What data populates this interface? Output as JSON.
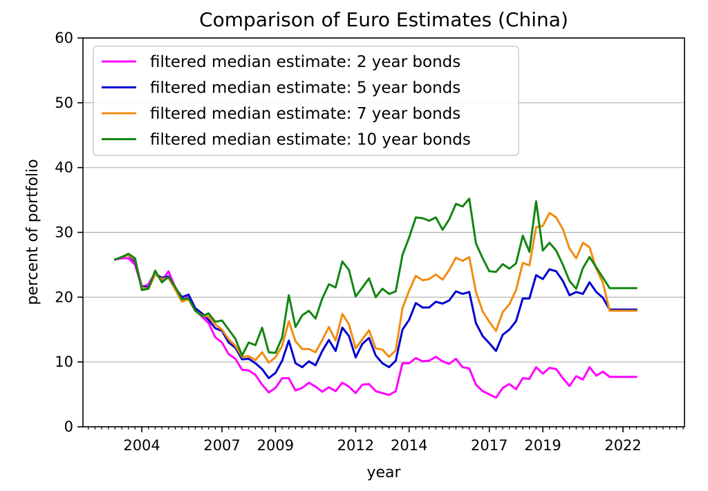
{
  "chart_data": {
    "type": "line",
    "title": "Comparison of Euro Estimates (China)",
    "xlabel": "year",
    "ylabel": "percent of portfolio",
    "xlim": [
      2001.8,
      2024.3
    ],
    "ylim": [
      0,
      60
    ],
    "x_ticks": [
      2004,
      2007,
      2009,
      2012,
      2014,
      2017,
      2019,
      2022
    ],
    "x_tick_labels": [
      "2004",
      "2007",
      "2009",
      "2012",
      "2014",
      "2017",
      "2019",
      "2022"
    ],
    "y_ticks": [
      0,
      10,
      20,
      30,
      40,
      50,
      60
    ],
    "y_tick_labels": [
      "0",
      "10",
      "20",
      "30",
      "40",
      "50",
      "60"
    ],
    "grid": "horizontal",
    "legend_position": "upper-left",
    "x": [
      2003.0,
      2003.25,
      2003.5,
      2003.75,
      2004.0,
      2004.25,
      2004.5,
      2004.75,
      2005.0,
      2005.25,
      2005.5,
      2005.75,
      2006.0,
      2006.25,
      2006.5,
      2006.75,
      2007.0,
      2007.25,
      2007.5,
      2007.75,
      2008.0,
      2008.25,
      2008.5,
      2008.75,
      2009.0,
      2009.25,
      2009.5,
      2009.75,
      2010.0,
      2010.25,
      2010.5,
      2010.75,
      2011.0,
      2011.25,
      2011.5,
      2011.75,
      2012.0,
      2012.25,
      2012.5,
      2012.75,
      2013.0,
      2013.25,
      2013.5,
      2013.75,
      2014.0,
      2014.25,
      2014.5,
      2014.75,
      2015.0,
      2015.25,
      2015.5,
      2015.75,
      2016.0,
      2016.25,
      2016.5,
      2016.75,
      2017.0,
      2017.25,
      2017.5,
      2017.75,
      2018.0,
      2018.25,
      2018.5,
      2018.75,
      2019.0,
      2019.25,
      2019.5,
      2019.75,
      2020.0,
      2020.25,
      2020.5,
      2020.75,
      2021.0,
      2021.25,
      2021.5,
      2021.75,
      2022.0,
      2022.25,
      2022.5
    ],
    "series": [
      {
        "name": "filtered median estimate: 2 year bonds",
        "color": "#ff00ff",
        "values": [
          25.8,
          26.0,
          26.0,
          25.0,
          21.5,
          22.0,
          23.8,
          22.5,
          24.0,
          21.5,
          20.0,
          20.2,
          18.0,
          17.0,
          16.0,
          13.8,
          13.0,
          11.2,
          10.5,
          8.8,
          8.7,
          8.0,
          6.5,
          5.3,
          6.0,
          7.5,
          7.5,
          5.6,
          6.0,
          6.8,
          6.2,
          5.4,
          6.1,
          5.5,
          6.8,
          6.2,
          5.2,
          6.5,
          6.6,
          5.5,
          5.2,
          4.9,
          5.5,
          9.8,
          9.8,
          10.6,
          10.1,
          10.2,
          10.8,
          10.1,
          9.7,
          10.5,
          9.2,
          9.0,
          6.5,
          5.5,
          5.0,
          4.5,
          6.0,
          6.6,
          5.8,
          7.5,
          7.4,
          9.2,
          8.2,
          9.1,
          8.9,
          7.5,
          6.3,
          7.8,
          7.3,
          9.2,
          7.9,
          8.5,
          7.7,
          7.7,
          7.7,
          7.7,
          7.7
        ]
      },
      {
        "name": "filtered median estimate: 5 year bonds",
        "color": "#0000d0",
        "values": [
          25.8,
          26.2,
          26.5,
          25.5,
          21.7,
          21.5,
          23.6,
          23.0,
          23.2,
          21.5,
          20.0,
          20.4,
          18.3,
          17.5,
          16.5,
          15.2,
          14.8,
          13.0,
          12.2,
          10.4,
          10.5,
          9.8,
          8.9,
          7.5,
          8.3,
          10.2,
          13.3,
          9.8,
          9.2,
          10.1,
          9.5,
          11.7,
          13.4,
          11.7,
          15.3,
          14.0,
          10.7,
          12.8,
          13.7,
          11.0,
          9.8,
          9.2,
          10.2,
          15.0,
          16.5,
          19.1,
          18.4,
          18.4,
          19.3,
          19.0,
          19.5,
          20.9,
          20.5,
          20.8,
          16.0,
          14.0,
          12.9,
          11.7,
          14.2,
          15.0,
          16.3,
          19.8,
          19.8,
          23.4,
          22.8,
          24.3,
          24.0,
          22.5,
          20.3,
          20.8,
          20.5,
          22.3,
          20.8,
          19.9,
          18.1,
          18.1,
          18.1,
          18.1,
          18.1
        ]
      },
      {
        "name": "filtered median estimate: 7 year bonds",
        "color": "#f28c10",
        "values": [
          25.8,
          26.2,
          26.5,
          25.8,
          21.5,
          21.3,
          23.5,
          22.8,
          23.0,
          21.2,
          19.3,
          19.7,
          17.9,
          17.2,
          17.0,
          15.8,
          15.0,
          13.5,
          12.5,
          10.8,
          10.9,
          10.3,
          11.5,
          9.9,
          10.7,
          12.5,
          16.3,
          13.2,
          12.0,
          12.0,
          11.5,
          13.4,
          15.4,
          13.3,
          17.4,
          15.8,
          12.1,
          13.5,
          14.9,
          12.1,
          11.9,
          10.8,
          11.8,
          18.3,
          21.0,
          23.3,
          22.6,
          22.8,
          23.5,
          22.7,
          24.2,
          26.1,
          25.6,
          26.2,
          20.8,
          17.8,
          16.2,
          14.8,
          17.7,
          18.9,
          21.1,
          25.3,
          24.9,
          30.8,
          31.0,
          33.0,
          32.3,
          30.5,
          27.5,
          26.0,
          28.4,
          27.7,
          24.4,
          22.2,
          17.9,
          17.9,
          17.9,
          17.9,
          17.9
        ]
      },
      {
        "name": "filtered median estimate: 10 year bonds",
        "color": "#138513",
        "values": [
          25.8,
          26.2,
          26.7,
          26.0,
          21.1,
          21.3,
          24.1,
          22.3,
          23.1,
          21.6,
          19.7,
          19.8,
          17.9,
          17.1,
          17.5,
          16.2,
          16.4,
          15.0,
          13.6,
          11.0,
          13.0,
          12.6,
          15.3,
          11.5,
          11.4,
          13.8,
          20.3,
          15.4,
          17.2,
          17.9,
          16.7,
          19.8,
          22.0,
          21.5,
          25.5,
          24.2,
          20.1,
          21.5,
          22.9,
          20.0,
          21.3,
          20.5,
          20.9,
          26.5,
          29.2,
          32.3,
          32.2,
          31.8,
          32.3,
          30.4,
          32.0,
          34.4,
          34.0,
          35.2,
          28.3,
          26.0,
          24.0,
          23.9,
          25.1,
          24.4,
          25.2,
          29.5,
          27.0,
          34.8,
          27.2,
          28.4,
          27.2,
          25.0,
          22.5,
          21.3,
          24.5,
          26.2,
          24.6,
          23.0,
          21.4,
          21.4,
          21.4,
          21.4,
          21.4
        ]
      }
    ]
  }
}
